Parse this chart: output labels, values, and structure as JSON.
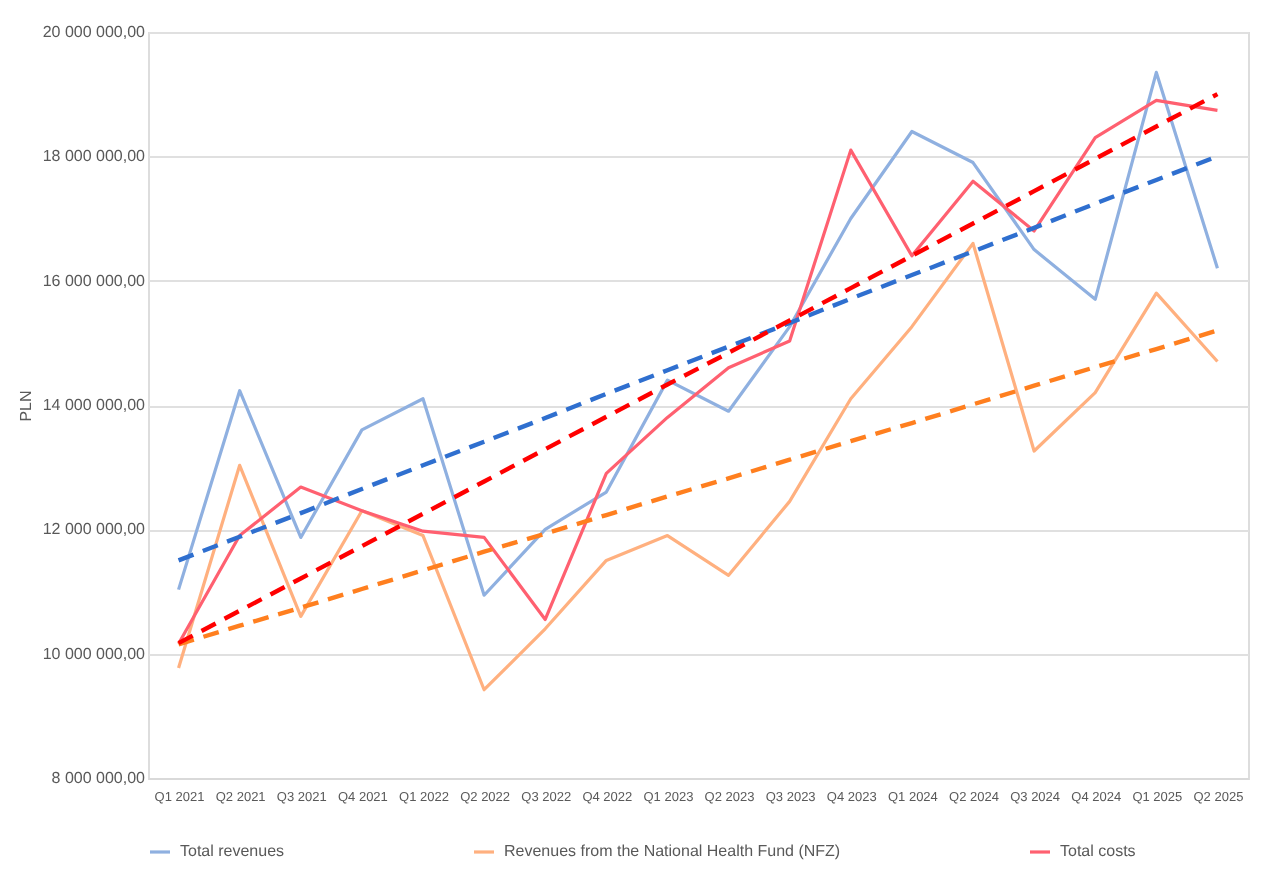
{
  "chart_data": {
    "type": "line",
    "ylabel": "PLN",
    "categories": [
      "Q1 2021",
      "Q2 2021",
      "Q3 2021",
      "Q4 2021",
      "Q1 2022",
      "Q2 2022",
      "Q3 2022",
      "Q4 2022",
      "Q1 2023",
      "Q2 2023",
      "Q3 2023",
      "Q4 2023",
      "Q1 2024",
      "Q2 2024",
      "Q3 2024",
      "Q4 2024",
      "Q1 2025",
      "Q2 2025"
    ],
    "series": [
      {
        "name": "Total revenues",
        "color": "#8fb0e0",
        "line_style": "solid",
        "values": [
          11030000,
          14230000,
          11870000,
          13600000,
          14100000,
          10940000,
          12000000,
          12600000,
          14400000,
          13900000,
          15260000,
          17000000,
          18400000,
          17900000,
          16500000,
          15700000,
          19350000,
          16200000
        ]
      },
      {
        "name": "Revenues from the National Health Fund (NFZ)",
        "color": "#ffb07f",
        "line_style": "solid",
        "values": [
          9770000,
          13030000,
          10600000,
          12300000,
          11900000,
          9420000,
          10400000,
          11500000,
          11900000,
          11260000,
          12450000,
          14100000,
          15260000,
          16600000,
          13260000,
          14200000,
          15800000,
          14700000
        ]
      },
      {
        "name": "Total costs",
        "color": "#ff6070",
        "line_style": "solid",
        "values": [
          10160000,
          11900000,
          12680000,
          12300000,
          11970000,
          11870000,
          10550000,
          12900000,
          13800000,
          14600000,
          15030000,
          18100000,
          16400000,
          17600000,
          16800000,
          18300000,
          18900000,
          18740000
        ]
      },
      {
        "type": "line",
        "color": "#2f6fcf",
        "line_style": "dashed",
        "values": [
          11500000,
          11880000,
          12260000,
          12650000,
          13030000,
          13410000,
          13790000,
          14180000,
          14560000,
          14940000,
          15320000,
          15710000,
          16090000,
          16470000,
          16850000,
          17240000,
          17620000,
          18000000
        ]
      },
      {
        "type": "line",
        "color": "#ff7f1f",
        "line_style": "dashed",
        "values": [
          10150000,
          10450000,
          10740000,
          11040000,
          11340000,
          11640000,
          11930000,
          12230000,
          12530000,
          12820000,
          13120000,
          13420000,
          13710000,
          14010000,
          14310000,
          14610000,
          14900000,
          15200000
        ]
      },
      {
        "type": "line",
        "color": "#ff0000",
        "line_style": "dashed",
        "values": [
          10170000,
          10690000,
          11210000,
          11730000,
          12250000,
          12770000,
          13290000,
          13810000,
          14330000,
          14840000,
          15360000,
          15880000,
          16400000,
          16920000,
          17440000,
          17960000,
          18480000,
          19000000
        ]
      }
    ],
    "ylim": [
      8000000,
      20000000
    ],
    "yticks": [
      {
        "value": 8000000,
        "label": "8 000 000,00"
      },
      {
        "value": 10000000,
        "label": "10 000 000,00"
      },
      {
        "value": 12000000,
        "label": "12 000 000,00"
      },
      {
        "value": 14000000,
        "label": "14 000 000,00"
      },
      {
        "value": 16000000,
        "label": "16 000 000,00"
      },
      {
        "value": 18000000,
        "label": "18 000 000,00"
      },
      {
        "value": 20000000,
        "label": "20 000 000,00"
      }
    ],
    "grid": "y",
    "legend": "bottom",
    "marker": "none"
  }
}
